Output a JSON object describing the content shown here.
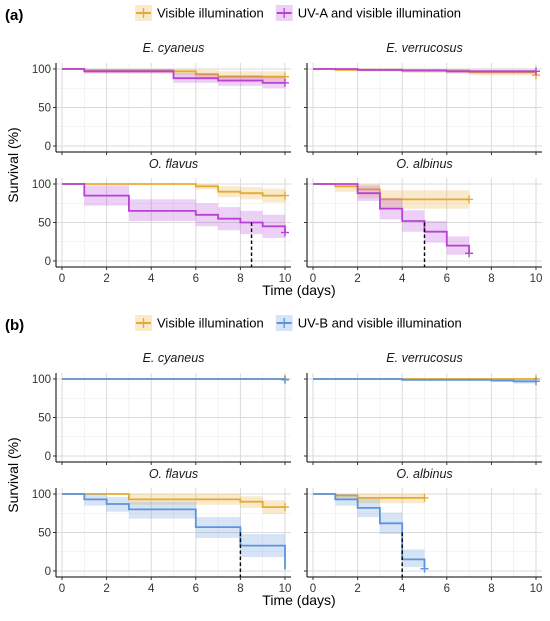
{
  "colors": {
    "visible": "#E8AA2E",
    "uva": "#B842D6",
    "uvb": "#5B95DB",
    "grid_minor": "#EBEBEB",
    "grid_major": "#DADADA"
  },
  "chart_data": [
    {
      "tag": "(a)",
      "type": "line",
      "subtype": "kaplan-meier step curves with confidence bands",
      "legend": [
        "Visible illumination",
        "UV-A and visible illumination"
      ],
      "legend_placement": "top",
      "xlabel": "Time (days)",
      "ylabel": "Survival (%)",
      "xlim": [
        0,
        10
      ],
      "ylim": [
        0,
        100
      ],
      "xticks": [
        "0",
        "2",
        "4",
        "6",
        "8",
        "10"
      ],
      "yticks": [
        "0",
        "50",
        "100"
      ],
      "grid": true,
      "panels": [
        {
          "title": "E. cyaneus",
          "series": [
            {
              "name": "Visible illumination",
              "color": "visible",
              "x": [
                0,
                1,
                5,
                6,
                7,
                10
              ],
              "y": [
                100,
                98,
                97,
                93,
                90,
                90
              ],
              "lower": [
                100,
                95,
                92,
                86,
                83,
                83
              ],
              "upper": [
                100,
                100,
                100,
                99,
                97,
                97
              ],
              "censored": [
                [
                  10,
                  90
                ]
              ]
            },
            {
              "name": "UV-A and visible illumination",
              "color": "uva",
              "x": [
                0,
                1,
                5,
                7,
                9,
                10
              ],
              "y": [
                100,
                97,
                88,
                85,
                82,
                82
              ],
              "lower": [
                100,
                94,
                82,
                78,
                75,
                75
              ],
              "upper": [
                100,
                100,
                95,
                92,
                90,
                90
              ],
              "censored": [
                [
                  10,
                  82
                ]
              ]
            }
          ]
        },
        {
          "title": "E. verrucosus",
          "series": [
            {
              "name": "Visible illumination",
              "color": "visible",
              "x": [
                0,
                1,
                4,
                7,
                10
              ],
              "y": [
                100,
                99,
                98,
                96,
                92
              ],
              "lower": [
                100,
                97,
                95,
                92,
                87
              ],
              "upper": [
                100,
                100,
                100,
                99,
                97
              ],
              "censored": [
                [
                  10,
                  92
                ]
              ]
            },
            {
              "name": "UV-A and visible illumination",
              "color": "uva",
              "x": [
                0,
                2,
                4,
                6,
                10
              ],
              "y": [
                100,
                99,
                98,
                97,
                97
              ],
              "lower": [
                100,
                97,
                96,
                94,
                94
              ],
              "upper": [
                100,
                100,
                100,
                99,
                99
              ],
              "censored": [
                [
                  10,
                  97
                ]
              ]
            }
          ]
        },
        {
          "title": "O. flavus",
          "series": [
            {
              "name": "Visible illumination",
              "color": "visible",
              "x": [
                0,
                6,
                7,
                8,
                9,
                10
              ],
              "y": [
                100,
                97,
                90,
                88,
                85,
                85
              ],
              "lower": [
                100,
                93,
                83,
                80,
                76,
                76
              ],
              "upper": [
                100,
                100,
                97,
                96,
                94,
                94
              ],
              "censored": [
                [
                  10,
                  85
                ]
              ]
            },
            {
              "name": "UV-A and visible illumination",
              "color": "uva",
              "x": [
                0,
                1,
                3,
                6,
                7,
                8,
                9,
                10
              ],
              "y": [
                100,
                85,
                65,
                60,
                55,
                50,
                45,
                37
              ],
              "lower": [
                100,
                72,
                52,
                45,
                40,
                35,
                30,
                28
              ],
              "upper": [
                100,
                98,
                80,
                75,
                70,
                65,
                60,
                50
              ],
              "censored": [
                [
                  10,
                  37
                ]
              ]
            }
          ],
          "median_line": {
            "x": 8.5,
            "y": 50
          }
        },
        {
          "title": "O. albinus",
          "series": [
            {
              "name": "Visible illumination",
              "color": "visible",
              "x": [
                0,
                1,
                2,
                3,
                7
              ],
              "y": [
                100,
                97,
                93,
                80,
                80
              ],
              "lower": [
                100,
                90,
                82,
                68,
                68
              ],
              "upper": [
                100,
                100,
                100,
                92,
                92
              ],
              "censored": [
                [
                  7,
                  80
                ]
              ]
            },
            {
              "name": "UV-A and visible illumination",
              "color": "uva",
              "x": [
                0,
                2,
                3,
                4,
                5,
                6,
                7
              ],
              "y": [
                100,
                88,
                68,
                52,
                38,
                20,
                10
              ],
              "lower": [
                100,
                78,
                54,
                38,
                24,
                8,
                2
              ],
              "upper": [
                100,
                98,
                82,
                66,
                52,
                32,
                18
              ],
              "censored": [
                [
                  7,
                  10
                ]
              ]
            }
          ],
          "median_line": {
            "x": 5,
            "y": 50
          }
        }
      ]
    },
    {
      "tag": "(b)",
      "type": "line",
      "subtype": "kaplan-meier step curves with confidence bands",
      "legend": [
        "Visible illumination",
        "UV-B and visible illumination"
      ],
      "legend_placement": "top",
      "xlabel": "Time (days)",
      "ylabel": "Survival (%)",
      "xlim": [
        0,
        10
      ],
      "ylim": [
        0,
        100
      ],
      "xticks": [
        "0",
        "2",
        "4",
        "6",
        "8",
        "10"
      ],
      "yticks": [
        "0",
        "50",
        "100"
      ],
      "grid": true,
      "panels": [
        {
          "title": "E. cyaneus",
          "series": [
            {
              "name": "Visible illumination",
              "color": "visible",
              "x": [
                0,
                10
              ],
              "y": [
                100,
                100
              ],
              "lower": [
                100,
                100
              ],
              "upper": [
                100,
                100
              ],
              "censored": [
                [
                  10,
                  100
                ]
              ]
            },
            {
              "name": "UV-B and visible illumination",
              "color": "uvb",
              "x": [
                0,
                10
              ],
              "y": [
                100,
                100
              ],
              "lower": [
                100,
                100
              ],
              "upper": [
                100,
                100
              ],
              "censored": [
                [
                  10,
                  99
                ]
              ]
            }
          ]
        },
        {
          "title": "E. verrucosus",
          "series": [
            {
              "name": "Visible illumination",
              "color": "visible",
              "x": [
                0,
                10
              ],
              "y": [
                100,
                100
              ],
              "lower": [
                100,
                100
              ],
              "upper": [
                100,
                100
              ],
              "censored": [
                [
                  10,
                  100
                ]
              ]
            },
            {
              "name": "UV-B and visible illumination",
              "color": "uvb",
              "x": [
                0,
                4,
                8,
                9,
                10
              ],
              "y": [
                100,
                99,
                98,
                97,
                97
              ],
              "lower": [
                100,
                98,
                96,
                94,
                94
              ],
              "upper": [
                100,
                100,
                100,
                99,
                99
              ],
              "censored": [
                [
                  10,
                  97
                ]
              ]
            }
          ]
        },
        {
          "title": "O. flavus",
          "series": [
            {
              "name": "Visible illumination",
              "color": "visible",
              "x": [
                0,
                3,
                8,
                9,
                10
              ],
              "y": [
                100,
                93,
                90,
                83,
                83
              ],
              "lower": [
                100,
                86,
                82,
                74,
                74
              ],
              "upper": [
                100,
                100,
                97,
                92,
                92
              ],
              "censored": [
                [
                  10,
                  83
                ]
              ]
            },
            {
              "name": "UV-B and visible illumination",
              "color": "uvb",
              "x": [
                0,
                1,
                2,
                3,
                6,
                8,
                10
              ],
              "y": [
                100,
                93,
                87,
                80,
                57,
                33,
                2
              ],
              "lower": [
                100,
                85,
                77,
                68,
                43,
                18,
                0
              ],
              "upper": [
                100,
                100,
                96,
                90,
                70,
                48,
                2
              ],
              "censored": []
            }
          ],
          "median_line": {
            "x": 8,
            "y": 50
          }
        },
        {
          "title": "O. albinus",
          "series": [
            {
              "name": "Visible illumination",
              "color": "visible",
              "x": [
                0,
                1,
                2,
                5
              ],
              "y": [
                100,
                98,
                95,
                95
              ],
              "lower": [
                100,
                94,
                88,
                88
              ],
              "upper": [
                100,
                100,
                100,
                100
              ],
              "censored": [
                [
                  5,
                  95
                ]
              ]
            },
            {
              "name": "UV-B and visible illumination",
              "color": "uvb",
              "x": [
                0,
                1,
                2,
                3,
                4,
                5
              ],
              "y": [
                100,
                93,
                82,
                62,
                15,
                3
              ],
              "lower": [
                100,
                85,
                70,
                48,
                5,
                0
              ],
              "upper": [
                100,
                100,
                94,
                76,
                28,
                8
              ],
              "censored": [
                [
                  5,
                  3
                ]
              ]
            }
          ],
          "median_line": {
            "x": 4,
            "y": 50
          }
        }
      ]
    }
  ]
}
